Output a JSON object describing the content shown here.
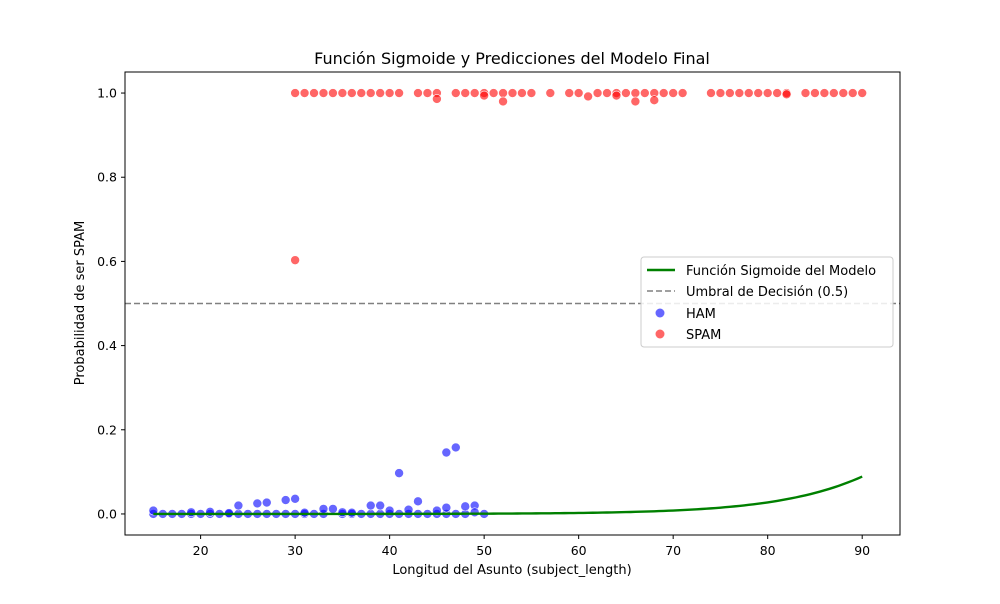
{
  "chart_data": {
    "type": "scatter",
    "title": "Función Sigmoide y Predicciones del Modelo Final",
    "xlabel": "Longitud del Asunto (subject_length)",
    "ylabel": "Probabilidad de ser SPAM",
    "xlim": [
      12,
      94
    ],
    "ylim": [
      -0.05,
      1.05
    ],
    "xticks": [
      20,
      30,
      40,
      50,
      60,
      70,
      80,
      90
    ],
    "yticks": [
      0.0,
      0.2,
      0.4,
      0.6,
      0.8,
      1.0
    ],
    "ytick_labels": [
      "0.0",
      "0.2",
      "0.4",
      "0.6",
      "0.8",
      "1.0"
    ],
    "legend_position": "center-right",
    "threshold": {
      "name": "Umbral de Decisión (0.5)",
      "y": 0.5,
      "color": "#808080"
    },
    "sigmoid": {
      "name": "Función Sigmoide del Modelo",
      "x_min": 15,
      "x_max": 90,
      "x0": 108.8,
      "k": 0.1238,
      "color": "#008000"
    },
    "series": [
      {
        "name": "HAM",
        "color": "#0000ff",
        "points": [
          [
            15,
            0.0
          ],
          [
            15,
            0.008
          ],
          [
            16,
            0.0
          ],
          [
            17,
            0.0
          ],
          [
            18,
            0.0
          ],
          [
            19,
            0.0
          ],
          [
            19,
            0.004
          ],
          [
            20,
            0.0
          ],
          [
            21,
            0.0
          ],
          [
            21,
            0.005
          ],
          [
            22,
            0.0
          ],
          [
            23,
            0.0
          ],
          [
            23,
            0.002
          ],
          [
            24,
            0.0
          ],
          [
            24,
            0.02
          ],
          [
            25,
            0.0
          ],
          [
            26,
            0.0
          ],
          [
            26,
            0.025
          ],
          [
            27,
            0.0
          ],
          [
            27,
            0.027
          ],
          [
            28,
            0.0
          ],
          [
            29,
            0.0
          ],
          [
            29,
            0.033
          ],
          [
            30,
            0.0
          ],
          [
            30,
            0.036
          ],
          [
            31,
            0.0
          ],
          [
            31,
            0.003
          ],
          [
            32,
            0.0
          ],
          [
            33,
            0.0
          ],
          [
            33,
            0.012
          ],
          [
            34,
            0.012
          ],
          [
            35,
            0.0
          ],
          [
            35,
            0.004
          ],
          [
            36,
            0.0
          ],
          [
            36,
            0.003
          ],
          [
            37,
            0.0
          ],
          [
            38,
            0.0
          ],
          [
            38,
            0.02
          ],
          [
            39,
            0.0
          ],
          [
            39,
            0.02
          ],
          [
            40,
            0.0
          ],
          [
            40,
            0.008
          ],
          [
            41,
            0.0
          ],
          [
            41,
            0.097
          ],
          [
            42,
            0.0
          ],
          [
            42,
            0.01
          ],
          [
            43,
            0.0
          ],
          [
            43,
            0.03
          ],
          [
            44,
            0.0
          ],
          [
            45,
            0.0
          ],
          [
            45,
            0.008
          ],
          [
            46,
            0.0
          ],
          [
            46,
            0.015
          ],
          [
            46,
            0.146
          ],
          [
            47,
            0.0
          ],
          [
            47,
            0.158
          ],
          [
            48,
            0.0
          ],
          [
            48,
            0.018
          ],
          [
            49,
            0.02
          ],
          [
            49,
            0.004
          ],
          [
            50,
            0.0
          ]
        ]
      },
      {
        "name": "SPAM",
        "color": "#ff0000",
        "points": [
          [
            30,
            0.603
          ],
          [
            30,
            1.0
          ],
          [
            31,
            1.0
          ],
          [
            32,
            1.0
          ],
          [
            33,
            1.0
          ],
          [
            34,
            1.0
          ],
          [
            35,
            1.0
          ],
          [
            36,
            1.0
          ],
          [
            37,
            1.0
          ],
          [
            38,
            1.0
          ],
          [
            39,
            1.0
          ],
          [
            40,
            1.0
          ],
          [
            41,
            1.0
          ],
          [
            43,
            1.0
          ],
          [
            44,
            1.0
          ],
          [
            45,
            1.0
          ],
          [
            45,
            0.986
          ],
          [
            47,
            1.0
          ],
          [
            48,
            1.0
          ],
          [
            49,
            1.0
          ],
          [
            50,
            1.0
          ],
          [
            50,
            0.994
          ],
          [
            51,
            1.0
          ],
          [
            52,
            1.0
          ],
          [
            52,
            0.98
          ],
          [
            53,
            1.0
          ],
          [
            54,
            1.0
          ],
          [
            55,
            1.0
          ],
          [
            57,
            1.0
          ],
          [
            59,
            1.0
          ],
          [
            60,
            1.0
          ],
          [
            61,
            0.992
          ],
          [
            62,
            1.0
          ],
          [
            63,
            1.0
          ],
          [
            64,
            1.0
          ],
          [
            64,
            0.994
          ],
          [
            65,
            1.0
          ],
          [
            66,
            1.0
          ],
          [
            66,
            0.98
          ],
          [
            67,
            1.0
          ],
          [
            68,
            1.0
          ],
          [
            68,
            0.983
          ],
          [
            69,
            1.0
          ],
          [
            70,
            1.0
          ],
          [
            71,
            1.0
          ],
          [
            74,
            1.0
          ],
          [
            75,
            1.0
          ],
          [
            76,
            1.0
          ],
          [
            77,
            1.0
          ],
          [
            78,
            1.0
          ],
          [
            79,
            1.0
          ],
          [
            80,
            1.0
          ],
          [
            81,
            1.0
          ],
          [
            82,
            1.0
          ],
          [
            82,
            0.997
          ],
          [
            84,
            1.0
          ],
          [
            85,
            1.0
          ],
          [
            86,
            1.0
          ],
          [
            87,
            1.0
          ],
          [
            88,
            1.0
          ],
          [
            89,
            1.0
          ],
          [
            90,
            1.0
          ]
        ]
      }
    ]
  }
}
